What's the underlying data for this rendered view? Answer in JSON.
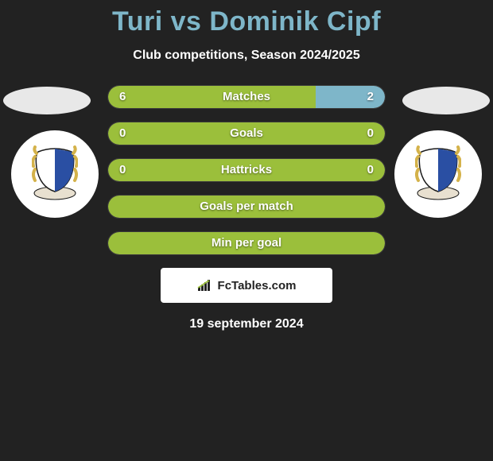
{
  "title": "Turi vs Dominik Cipf",
  "subtitle": "Club competitions, Season 2024/2025",
  "date": "19 september 2024",
  "attribution": "FcTables.com",
  "colors": {
    "player1_fill": "#9bbf3b",
    "player2_fill": "#7eb6c9",
    "neutral_fill": "#9bbf3b",
    "bar_bg": "#444444",
    "title_color": "#7eb6c9",
    "page_bg": "#222222"
  },
  "stats": [
    {
      "label": "Matches",
      "v1": "6",
      "v2": "2",
      "p1_pct": 75,
      "p2_pct": 25,
      "mode": "split"
    },
    {
      "label": "Goals",
      "v1": "0",
      "v2": "0",
      "p1_pct": 100,
      "p2_pct": 0,
      "mode": "neutral"
    },
    {
      "label": "Hattricks",
      "v1": "0",
      "v2": "0",
      "p1_pct": 100,
      "p2_pct": 0,
      "mode": "neutral"
    },
    {
      "label": "Goals per match",
      "v1": "",
      "v2": "",
      "p1_pct": 100,
      "p2_pct": 0,
      "mode": "neutral"
    },
    {
      "label": "Min per goal",
      "v1": "",
      "v2": "",
      "p1_pct": 100,
      "p2_pct": 0,
      "mode": "neutral"
    }
  ],
  "badge_svg": {
    "wreath_color": "#d4b24a",
    "shield_blue": "#2a4fa3",
    "shield_white": "#ffffff",
    "shield_border": "#1a1a1a",
    "banner_color": "#e8e0d0"
  }
}
